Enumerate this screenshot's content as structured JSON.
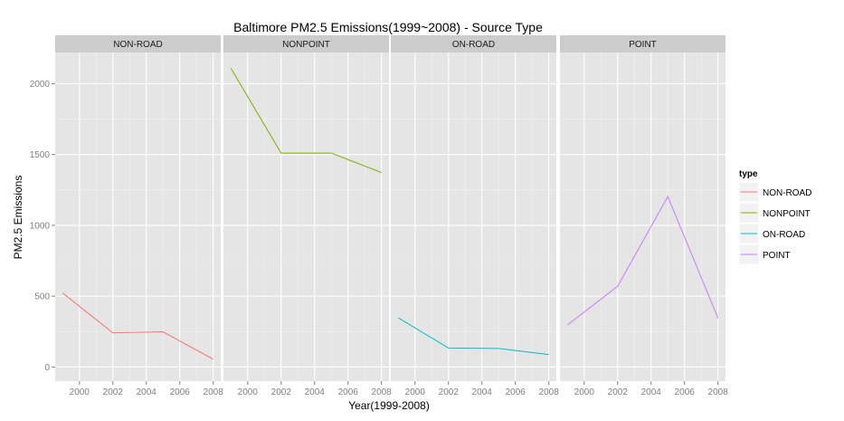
{
  "chart_data": {
    "type": "line",
    "title": "Baltimore PM2.5 Emissions(1999~2008) - Source Type",
    "xlabel": "Year(1999-2008)",
    "ylabel": "PM2.5 Emissions",
    "facet_by": "type",
    "x": [
      1999,
      2002,
      2005,
      2008
    ],
    "x_ticks": [
      "2000",
      "2002",
      "2004",
      "2006",
      "2008"
    ],
    "y_ticks": [
      "0",
      "500",
      "1000",
      "1500",
      "2000"
    ],
    "xlim": [
      1998.55,
      2008.45
    ],
    "ylim": [
      -100,
      2220
    ],
    "grid": true,
    "legend_position": "right",
    "legend_title": "type",
    "series": [
      {
        "name": "NON-ROAD",
        "color": "#F8766D",
        "values": [
          522,
          241,
          248,
          55
        ]
      },
      {
        "name": "NONPOINT",
        "color": "#7CAE00",
        "values": [
          2108,
          1510,
          1510,
          1373
        ]
      },
      {
        "name": "ON-ROAD",
        "color": "#00BFC4",
        "values": [
          347,
          134,
          131,
          88
        ]
      },
      {
        "name": "POINT",
        "color": "#C77CFF",
        "values": [
          297,
          570,
          1203,
          345
        ]
      }
    ]
  }
}
